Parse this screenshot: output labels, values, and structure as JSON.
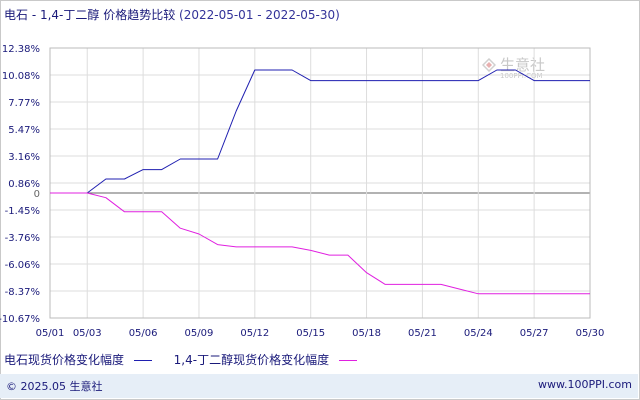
{
  "title": {
    "main": "电石 - 1,4-丁二醇 价格趋势比较",
    "range": "(2022-05-01 - 2022-05-30)"
  },
  "colors": {
    "series1": "#1f1fb0",
    "series2": "#e020e0",
    "grid": "#dddddd",
    "zero_line": "#666666",
    "axis_text": "#1a1a7a"
  },
  "watermark": {
    "brand": "生意社",
    "url": "100PPI.COM"
  },
  "legend": [
    {
      "label": "电石现货价格变化幅度",
      "color_key": "series1"
    },
    {
      "label": "1,4-丁二醇现货价格变化幅度",
      "color_key": "series2"
    }
  ],
  "footer": {
    "copyright": "© 2025.05 生意社",
    "website": "www.100PPI.com"
  },
  "chart_data": {
    "type": "line",
    "y_ticks": [
      "12.38%",
      "10.08%",
      "7.77%",
      "5.47%",
      "3.16%",
      "0.86%",
      "0",
      "-1.45%",
      "-3.76%",
      "-6.06%",
      "-8.37%",
      "-10.67%"
    ],
    "y_tick_values": [
      12.38,
      10.08,
      7.77,
      5.47,
      3.16,
      0.86,
      0,
      -1.45,
      -3.76,
      -6.06,
      -8.37,
      -10.67
    ],
    "ylim": [
      -10.67,
      12.38
    ],
    "x_ticks": [
      "05/01",
      "05/03",
      "05/06",
      "05/09",
      "05/12",
      "05/15",
      "05/18",
      "05/21",
      "05/24",
      "05/27",
      "05/30"
    ],
    "x_tick_days": [
      1,
      3,
      6,
      9,
      12,
      15,
      18,
      21,
      24,
      27,
      30
    ],
    "xlim": [
      1,
      30
    ],
    "grid": true,
    "series": [
      {
        "name": "电石现货价格变化幅度",
        "color_key": "series1",
        "points": [
          [
            1,
            0
          ],
          [
            2,
            0
          ],
          [
            3,
            0
          ],
          [
            4,
            1.2
          ],
          [
            5,
            1.2
          ],
          [
            6,
            2.0
          ],
          [
            7,
            2.0
          ],
          [
            8,
            2.9
          ],
          [
            9,
            2.9
          ],
          [
            10,
            2.9
          ],
          [
            11,
            7.0
          ],
          [
            12,
            10.5
          ],
          [
            13,
            10.5
          ],
          [
            14,
            10.5
          ],
          [
            15,
            9.6
          ],
          [
            16,
            9.6
          ],
          [
            17,
            9.6
          ],
          [
            18,
            9.6
          ],
          [
            19,
            9.6
          ],
          [
            20,
            9.6
          ],
          [
            21,
            9.6
          ],
          [
            22,
            9.6
          ],
          [
            23,
            9.6
          ],
          [
            24,
            9.6
          ],
          [
            25,
            10.5
          ],
          [
            26,
            10.5
          ],
          [
            27,
            9.6
          ],
          [
            28,
            9.6
          ],
          [
            29,
            9.6
          ],
          [
            30,
            9.6
          ]
        ]
      },
      {
        "name": "1,4-丁二醇现货价格变化幅度",
        "color_key": "series2",
        "points": [
          [
            1,
            0
          ],
          [
            2,
            0
          ],
          [
            3,
            0
          ],
          [
            4,
            -0.4
          ],
          [
            5,
            -1.6
          ],
          [
            6,
            -1.6
          ],
          [
            7,
            -1.6
          ],
          [
            8,
            -3.0
          ],
          [
            9,
            -3.5
          ],
          [
            10,
            -4.4
          ],
          [
            11,
            -4.6
          ],
          [
            12,
            -4.6
          ],
          [
            13,
            -4.6
          ],
          [
            14,
            -4.6
          ],
          [
            15,
            -4.9
          ],
          [
            16,
            -5.3
          ],
          [
            17,
            -5.3
          ],
          [
            18,
            -6.8
          ],
          [
            19,
            -7.8
          ],
          [
            20,
            -7.8
          ],
          [
            21,
            -7.8
          ],
          [
            22,
            -7.8
          ],
          [
            23,
            -8.2
          ],
          [
            24,
            -8.6
          ],
          [
            25,
            -8.6
          ],
          [
            26,
            -8.6
          ],
          [
            27,
            -8.6
          ],
          [
            28,
            -8.6
          ],
          [
            29,
            -8.6
          ],
          [
            30,
            -8.6
          ]
        ]
      }
    ]
  }
}
